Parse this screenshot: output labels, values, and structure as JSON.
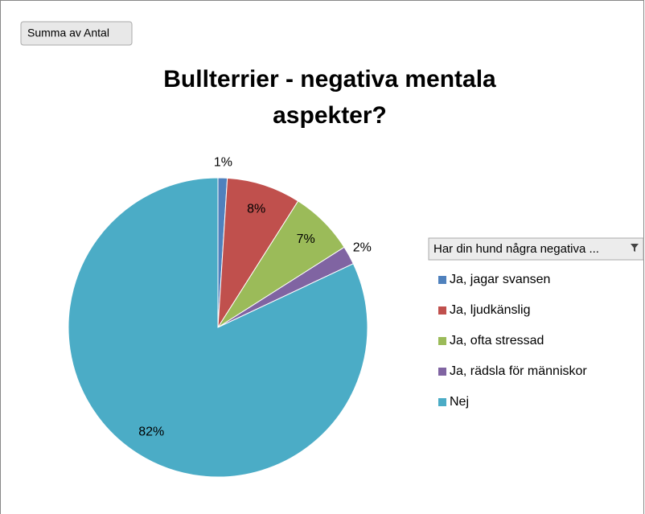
{
  "chart_data": {
    "type": "pie",
    "field_button": "Summa av Antal",
    "title_lines": [
      "Bullterrier - negativa mentala",
      "aspekter?"
    ],
    "legend_title": "Har din hund några negativa ...",
    "categories": [
      "Ja, jagar svansen",
      "Ja, ljudkänslig",
      "Ja, ofta stressad",
      "Ja, rädsla för människor",
      "Nej"
    ],
    "values": [
      1,
      8,
      7,
      2,
      82
    ],
    "value_labels": [
      "1%",
      "8%",
      "7%",
      "2%",
      "82%"
    ],
    "colors": [
      "#4f81bd",
      "#c0504d",
      "#9bbb59",
      "#8064a2",
      "#4bacc6"
    ],
    "legend": "right"
  }
}
